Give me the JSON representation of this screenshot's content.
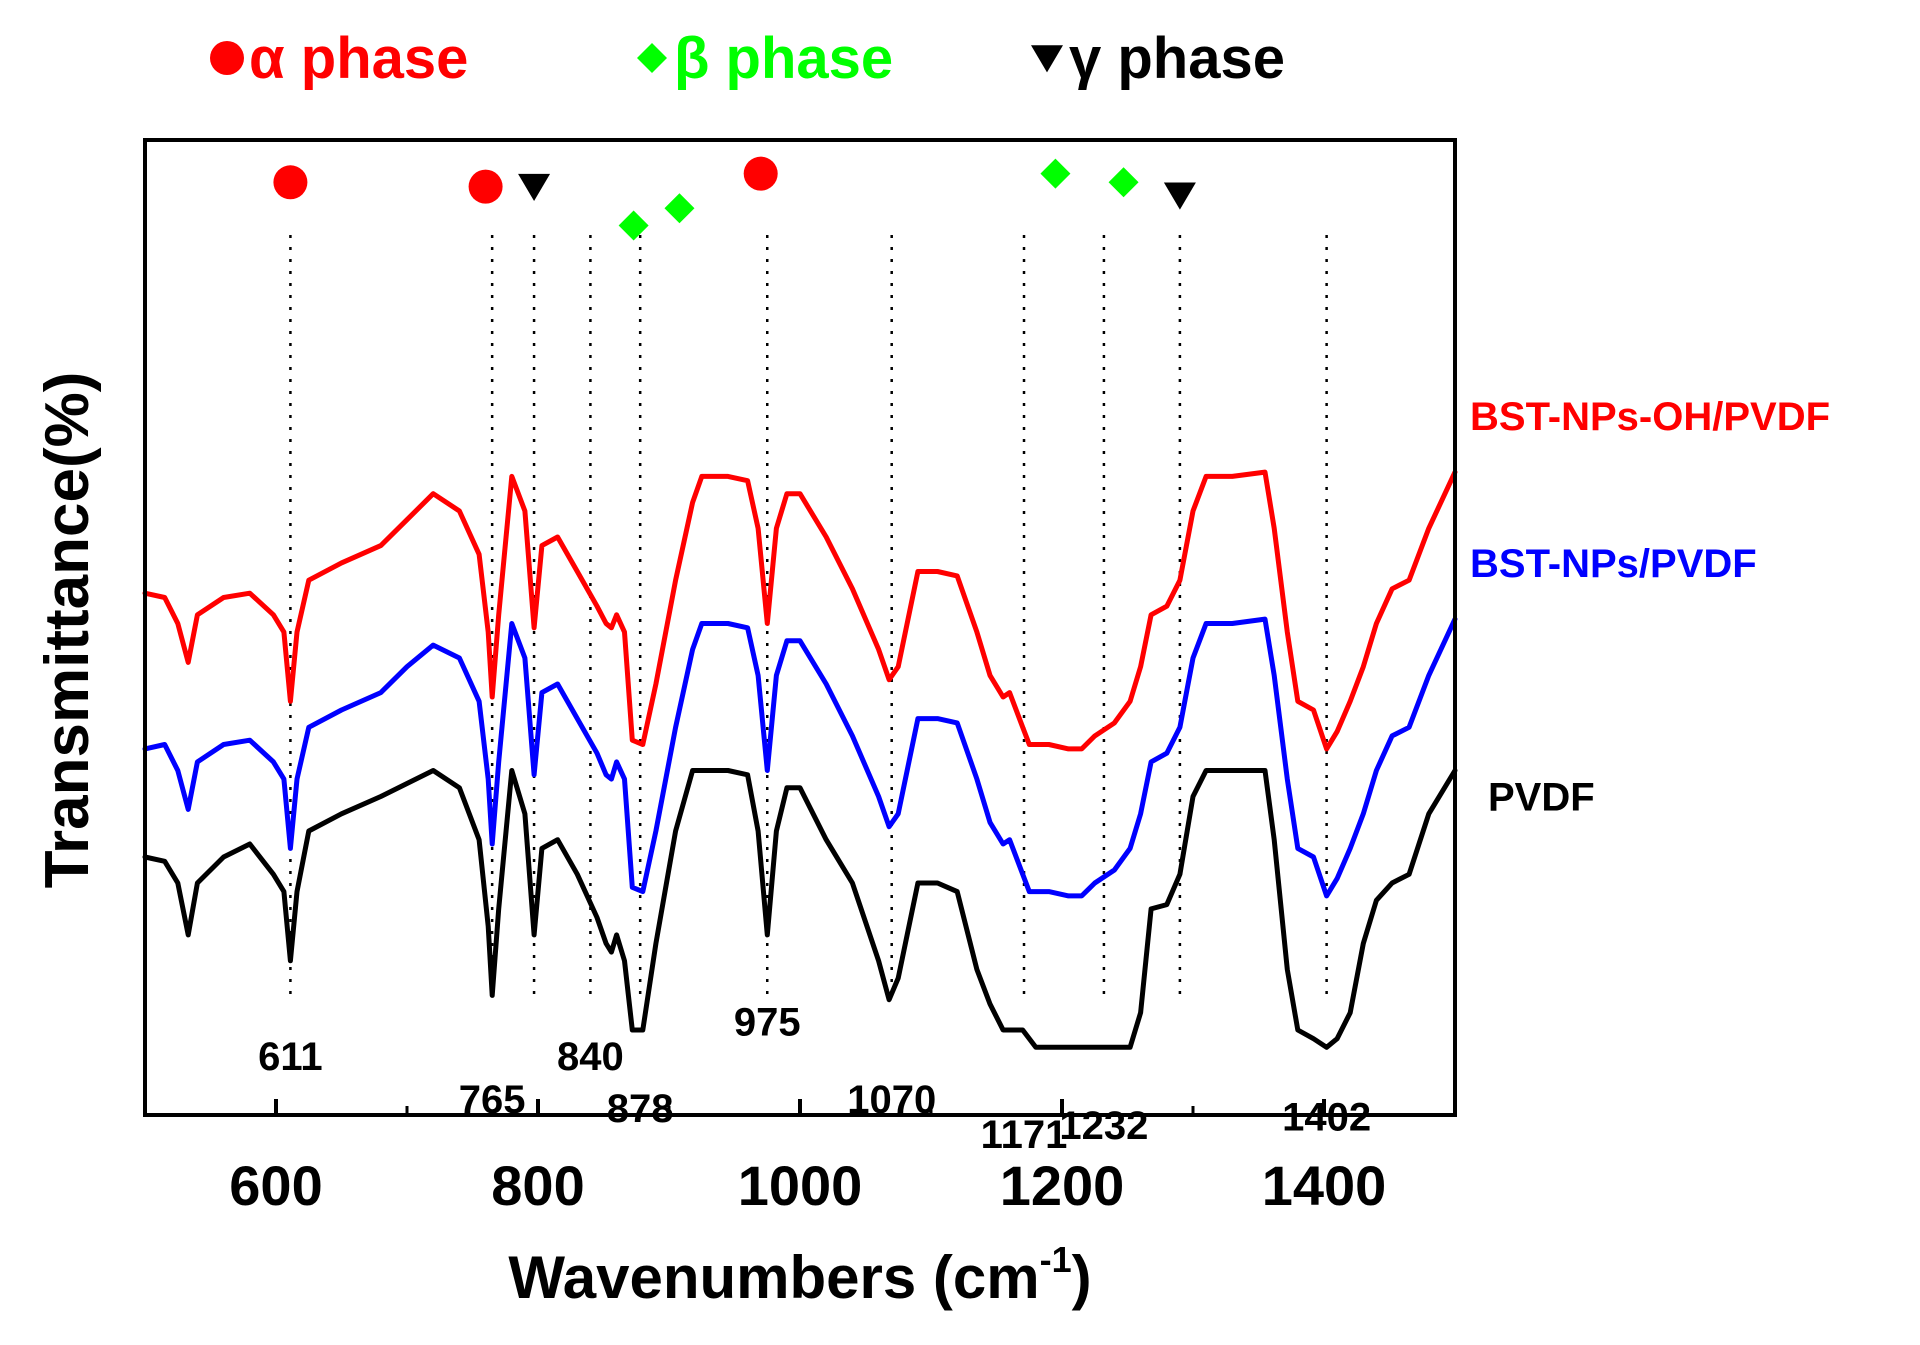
{
  "chart_data": {
    "type": "line",
    "title": "",
    "xlabel": "Wavenumbers (cm",
    "xlabel_superscript": "-1",
    "xlabel_close": ")",
    "ylabel": "Transmittance(%)",
    "xlim": [
      500,
      1500
    ],
    "ylim": [
      0,
      100
    ],
    "y_units": "arbitrary (offset, no y tick labels)",
    "xticks": [
      600,
      800,
      1000,
      1200,
      1400
    ],
    "x_minor_ticks": [
      500,
      700,
      900,
      1100,
      1300,
      1500
    ],
    "grid": false,
    "legend": {
      "placement": "top",
      "entries": [
        {
          "symbol": "circle",
          "greek": "α",
          "text": " phase",
          "color": "#ff0000"
        },
        {
          "symbol": "diamond",
          "greek": "β",
          "text": " phase",
          "color": "#00ff00"
        },
        {
          "symbol": "triangle-down",
          "greek": "γ",
          "text": " phase",
          "color": "#000000"
        }
      ]
    },
    "series": [
      {
        "name": "BST-NPs-OH/PVDF",
        "color": "#ff0000",
        "label_anchor_y": 71,
        "points": [
          [
            500,
            50.5
          ],
          [
            515,
            50
          ],
          [
            525,
            47
          ],
          [
            533,
            42.5
          ],
          [
            540,
            48
          ],
          [
            560,
            50
          ],
          [
            580,
            50.5
          ],
          [
            598,
            48
          ],
          [
            606,
            46
          ],
          [
            611,
            38
          ],
          [
            616,
            46
          ],
          [
            625,
            52
          ],
          [
            650,
            54
          ],
          [
            680,
            56
          ],
          [
            700,
            59
          ],
          [
            720,
            62
          ],
          [
            740,
            60
          ],
          [
            755,
            55
          ],
          [
            762,
            46
          ],
          [
            765,
            38.5
          ],
          [
            770,
            48
          ],
          [
            780,
            64
          ],
          [
            790,
            60
          ],
          [
            797,
            46.5
          ],
          [
            803,
            56
          ],
          [
            815,
            57
          ],
          [
            830,
            53
          ],
          [
            845,
            49
          ],
          [
            852,
            47
          ],
          [
            856,
            46.5
          ],
          [
            860,
            48
          ],
          [
            866,
            46
          ],
          [
            872,
            33.5
          ],
          [
            880,
            33
          ],
          [
            890,
            40
          ],
          [
            905,
            52
          ],
          [
            918,
            61
          ],
          [
            925,
            64
          ],
          [
            945,
            64
          ],
          [
            960,
            63.5
          ],
          [
            968,
            58
          ],
          [
            975,
            47
          ],
          [
            982,
            58
          ],
          [
            990,
            62
          ],
          [
            1000,
            62
          ],
          [
            1020,
            57
          ],
          [
            1040,
            51
          ],
          [
            1060,
            44
          ],
          [
            1068,
            40.5
          ],
          [
            1075,
            42
          ],
          [
            1090,
            53
          ],
          [
            1105,
            53
          ],
          [
            1120,
            52.5
          ],
          [
            1135,
            46
          ],
          [
            1145,
            41
          ],
          [
            1155,
            38.5
          ],
          [
            1160,
            39
          ],
          [
            1170,
            35
          ],
          [
            1175,
            33
          ],
          [
            1190,
            33
          ],
          [
            1205,
            32.5
          ],
          [
            1215,
            32.5
          ],
          [
            1225,
            34
          ],
          [
            1240,
            35.5
          ],
          [
            1252,
            38
          ],
          [
            1260,
            42
          ],
          [
            1268,
            48
          ],
          [
            1280,
            49
          ],
          [
            1290,
            52
          ],
          [
            1300,
            60
          ],
          [
            1310,
            64
          ],
          [
            1330,
            64
          ],
          [
            1355,
            64.5
          ],
          [
            1362,
            58
          ],
          [
            1372,
            46
          ],
          [
            1380,
            38
          ],
          [
            1392,
            37
          ],
          [
            1402,
            32.5
          ],
          [
            1410,
            34.5
          ],
          [
            1420,
            38
          ],
          [
            1430,
            42
          ],
          [
            1440,
            47
          ],
          [
            1452,
            51
          ],
          [
            1465,
            52
          ],
          [
            1480,
            58
          ],
          [
            1500,
            64.5
          ]
        ]
      },
      {
        "name": "BST-NPs/PVDF",
        "color": "#0000ff",
        "label_anchor_y": 54,
        "points": [
          [
            500,
            32.5
          ],
          [
            515,
            33
          ],
          [
            525,
            30
          ],
          [
            533,
            25.5
          ],
          [
            540,
            31
          ],
          [
            560,
            33
          ],
          [
            580,
            33.5
          ],
          [
            598,
            31
          ],
          [
            606,
            29
          ],
          [
            611,
            21
          ],
          [
            616,
            29
          ],
          [
            625,
            35
          ],
          [
            650,
            37
          ],
          [
            680,
            39
          ],
          [
            700,
            42
          ],
          [
            720,
            44.5
          ],
          [
            740,
            43
          ],
          [
            755,
            38
          ],
          [
            762,
            29
          ],
          [
            765,
            21.5
          ],
          [
            770,
            31
          ],
          [
            780,
            47
          ],
          [
            790,
            43
          ],
          [
            797,
            29.5
          ],
          [
            803,
            39
          ],
          [
            815,
            40
          ],
          [
            830,
            36
          ],
          [
            845,
            32
          ],
          [
            852,
            29.5
          ],
          [
            856,
            29
          ],
          [
            860,
            31
          ],
          [
            866,
            29
          ],
          [
            872,
            16.5
          ],
          [
            880,
            16
          ],
          [
            890,
            23
          ],
          [
            905,
            35
          ],
          [
            918,
            44
          ],
          [
            925,
            47
          ],
          [
            945,
            47
          ],
          [
            960,
            46.5
          ],
          [
            968,
            41
          ],
          [
            975,
            30
          ],
          [
            982,
            41
          ],
          [
            990,
            45
          ],
          [
            1000,
            45
          ],
          [
            1020,
            40
          ],
          [
            1040,
            34
          ],
          [
            1060,
            27
          ],
          [
            1068,
            23.5
          ],
          [
            1075,
            25
          ],
          [
            1090,
            36
          ],
          [
            1105,
            36
          ],
          [
            1120,
            35.5
          ],
          [
            1135,
            29
          ],
          [
            1145,
            24
          ],
          [
            1155,
            21.5
          ],
          [
            1160,
            22
          ],
          [
            1170,
            18
          ],
          [
            1175,
            16
          ],
          [
            1190,
            16
          ],
          [
            1205,
            15.5
          ],
          [
            1215,
            15.5
          ],
          [
            1225,
            17
          ],
          [
            1240,
            18.5
          ],
          [
            1252,
            21
          ],
          [
            1260,
            25
          ],
          [
            1268,
            31
          ],
          [
            1280,
            32
          ],
          [
            1290,
            35
          ],
          [
            1300,
            43
          ],
          [
            1310,
            47
          ],
          [
            1330,
            47
          ],
          [
            1355,
            47.5
          ],
          [
            1362,
            41
          ],
          [
            1372,
            29
          ],
          [
            1380,
            21
          ],
          [
            1392,
            20
          ],
          [
            1402,
            15.5
          ],
          [
            1410,
            17.5
          ],
          [
            1420,
            21
          ],
          [
            1430,
            25
          ],
          [
            1440,
            30
          ],
          [
            1452,
            34
          ],
          [
            1465,
            35
          ],
          [
            1480,
            41
          ],
          [
            1500,
            47.5
          ]
        ]
      },
      {
        "name": "PVDF",
        "color": "#000000",
        "label_anchor_y": 27,
        "points": [
          [
            500,
            20
          ],
          [
            515,
            19.5
          ],
          [
            525,
            17
          ],
          [
            533,
            11
          ],
          [
            540,
            17
          ],
          [
            560,
            20
          ],
          [
            580,
            21.5
          ],
          [
            598,
            18
          ],
          [
            606,
            16
          ],
          [
            611,
            8
          ],
          [
            616,
            16
          ],
          [
            625,
            23
          ],
          [
            650,
            25
          ],
          [
            680,
            27
          ],
          [
            700,
            28.5
          ],
          [
            720,
            30
          ],
          [
            740,
            28
          ],
          [
            755,
            22
          ],
          [
            762,
            12
          ],
          [
            765,
            4
          ],
          [
            770,
            14
          ],
          [
            780,
            30
          ],
          [
            790,
            25
          ],
          [
            797,
            11
          ],
          [
            803,
            21
          ],
          [
            815,
            22
          ],
          [
            830,
            18
          ],
          [
            845,
            13
          ],
          [
            852,
            10
          ],
          [
            856,
            9
          ],
          [
            860,
            11
          ],
          [
            866,
            8
          ],
          [
            872,
            0
          ],
          [
            880,
            0
          ],
          [
            890,
            10
          ],
          [
            905,
            23
          ],
          [
            918,
            30
          ],
          [
            925,
            30
          ],
          [
            945,
            30
          ],
          [
            960,
            29.5
          ],
          [
            968,
            23
          ],
          [
            975,
            11
          ],
          [
            982,
            23
          ],
          [
            990,
            28
          ],
          [
            1000,
            28
          ],
          [
            1020,
            22
          ],
          [
            1040,
            17
          ],
          [
            1060,
            8
          ],
          [
            1068,
            3.5
          ],
          [
            1075,
            6
          ],
          [
            1090,
            17
          ],
          [
            1105,
            17
          ],
          [
            1120,
            16
          ],
          [
            1135,
            7
          ],
          [
            1145,
            3
          ],
          [
            1155,
            0
          ],
          [
            1170,
            0
          ],
          [
            1180,
            -2
          ],
          [
            1200,
            -2
          ],
          [
            1215,
            -2
          ],
          [
            1225,
            -2
          ],
          [
            1240,
            -2
          ],
          [
            1252,
            -2
          ],
          [
            1260,
            2
          ],
          [
            1268,
            14
          ],
          [
            1280,
            14.5
          ],
          [
            1290,
            18
          ],
          [
            1300,
            27
          ],
          [
            1310,
            30
          ],
          [
            1330,
            30
          ],
          [
            1355,
            30
          ],
          [
            1362,
            22
          ],
          [
            1372,
            7
          ],
          [
            1380,
            0
          ],
          [
            1392,
            -1
          ],
          [
            1402,
            -2
          ],
          [
            1410,
            -1
          ],
          [
            1420,
            2
          ],
          [
            1430,
            10
          ],
          [
            1440,
            15
          ],
          [
            1452,
            17
          ],
          [
            1465,
            18
          ],
          [
            1480,
            25
          ],
          [
            1500,
            30
          ]
        ]
      }
    ],
    "reference_lines": [
      611,
      765,
      797,
      840,
      878,
      975,
      1070,
      1171,
      1232,
      1290,
      1402
    ],
    "peak_labels": [
      {
        "text": "611",
        "x": 611,
        "y": -3
      },
      {
        "text": "765",
        "x": 765,
        "y": -8
      },
      {
        "text": "840",
        "x": 840,
        "y": -3
      },
      {
        "text": "878",
        "x": 878,
        "y": -9
      },
      {
        "text": "975",
        "x": 975,
        "y": 1
      },
      {
        "text": "1070",
        "x": 1070,
        "y": -8
      },
      {
        "text": "1171",
        "x": 1171,
        "y": -12
      },
      {
        "text": "1232",
        "x": 1232,
        "y": -11
      },
      {
        "text": "1402",
        "x": 1402,
        "y": -10
      }
    ],
    "phase_markers": [
      {
        "phase": "alpha",
        "symbol": "circle",
        "x": 611,
        "y": 98,
        "color": "#ff0000"
      },
      {
        "phase": "alpha",
        "symbol": "circle",
        "x": 760,
        "y": 97.5,
        "color": "#ff0000"
      },
      {
        "phase": "gamma",
        "symbol": "triangle-down",
        "x": 797,
        "y": 97.5,
        "color": "#000000"
      },
      {
        "phase": "beta",
        "symbol": "diamond",
        "x": 873,
        "y": 93,
        "color": "#00ff00"
      },
      {
        "phase": "beta",
        "symbol": "diamond",
        "x": 908,
        "y": 95,
        "color": "#00ff00"
      },
      {
        "phase": "alpha",
        "symbol": "circle",
        "x": 970,
        "y": 99,
        "color": "#ff0000"
      },
      {
        "phase": "beta",
        "symbol": "diamond",
        "x": 1195,
        "y": 99,
        "color": "#00ff00"
      },
      {
        "phase": "beta",
        "symbol": "diamond",
        "x": 1247,
        "y": 98,
        "color": "#00ff00"
      },
      {
        "phase": "gamma",
        "symbol": "triangle-down",
        "x": 1290,
        "y": 96.5,
        "color": "#000000"
      }
    ]
  }
}
